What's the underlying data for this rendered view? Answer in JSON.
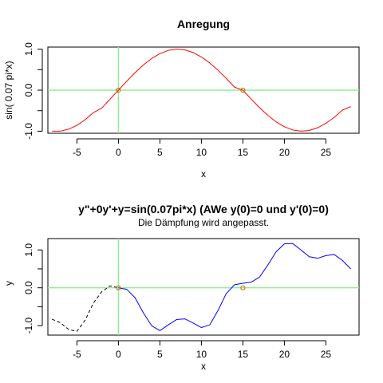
{
  "chart_data": [
    {
      "type": "line",
      "title": "Anregung",
      "subtitle": "",
      "xlabel": "x",
      "ylabel": "sin( 0.07 pi*x)",
      "xlim": [
        -8.5,
        29.0
      ],
      "ylim": [
        -1.05,
        1.05
      ],
      "x_ticks": [
        -5,
        0,
        5,
        10,
        15,
        20,
        25
      ],
      "y_ticks": [
        -1.0,
        0.0,
        1.0
      ],
      "y_tick_labels": [
        "-1.0",
        "0.0",
        "1.0"
      ],
      "grid": false,
      "reference_lines": {
        "vertical_x": 0,
        "horizontal_y": 0,
        "color": "#90ee90"
      },
      "markers": [
        {
          "x": 0,
          "y": 0
        },
        {
          "x": 15,
          "y": 0
        }
      ],
      "series": [
        {
          "color": "#ff0000",
          "x_range": [
            -8,
            28
          ],
          "x": [
            -8,
            -7,
            -6,
            -5,
            -4,
            -3,
            -2,
            -1,
            0,
            1,
            2,
            3,
            4,
            5,
            6,
            7,
            8,
            9,
            10,
            11,
            12,
            13,
            14,
            15,
            16,
            17,
            18,
            19,
            20,
            21,
            22,
            23,
            24,
            25,
            26,
            27,
            28
          ],
          "y": [
            -0.998,
            -1.0,
            -0.951,
            -0.857,
            -0.719,
            -0.545,
            -0.434,
            -0.218,
            0.0,
            0.218,
            0.426,
            0.613,
            0.771,
            0.891,
            0.969,
            1.0,
            0.982,
            0.917,
            0.809,
            0.663,
            0.485,
            0.287,
            0.073,
            0.0,
            -0.218,
            -0.426,
            -0.613,
            -0.771,
            -0.891,
            -0.969,
            -1.0,
            -0.982,
            -0.917,
            -0.809,
            -0.663,
            -0.485,
            -0.401
          ]
        }
      ]
    },
    {
      "type": "line",
      "title": "y\"+0y'+y=sin(0.07pi*x) (AWe y(0)=0 und y'(0)=0)",
      "subtitle": "Die Dämpfung wird angepasst.",
      "xlabel": "x",
      "ylabel": "y",
      "xlim": [
        -8.5,
        29.0
      ],
      "ylim": [
        -1.25,
        1.3
      ],
      "x_ticks": [
        -5,
        0,
        5,
        10,
        15,
        20,
        25
      ],
      "y_ticks": [
        -1.0,
        0.0,
        1.0
      ],
      "y_tick_labels": [
        "-1.0",
        "0.0",
        "1.0"
      ],
      "grid": false,
      "reference_lines": {
        "vertical_x": 0,
        "horizontal_y": 0,
        "color": "#90ee90"
      },
      "markers": [
        {
          "x": 0,
          "y": 0
        },
        {
          "x": 15,
          "y": 0
        }
      ],
      "series": [
        {
          "color": "#000000",
          "dash": "dashed",
          "x": [
            -8,
            -7,
            -6,
            -5,
            -4,
            -3,
            -2,
            -1,
            0
          ],
          "y": [
            -0.83,
            -0.92,
            -1.1,
            -1.15,
            -0.85,
            -0.4,
            -0.1,
            0.05,
            0.0
          ]
        },
        {
          "color": "#0000ff",
          "dash": "solid",
          "x": [
            0,
            1,
            2,
            3,
            4,
            5,
            6,
            7,
            8,
            9,
            10,
            11,
            12,
            13,
            14,
            15,
            16,
            17,
            18,
            19,
            20,
            21,
            22,
            23,
            24,
            25,
            26,
            27,
            28
          ],
          "y": [
            0.0,
            -0.04,
            -0.26,
            -0.66,
            -1.0,
            -1.13,
            -0.98,
            -0.84,
            -0.82,
            -0.93,
            -1.05,
            -0.98,
            -0.6,
            -0.15,
            0.08,
            0.12,
            0.15,
            0.28,
            0.6,
            0.95,
            1.16,
            1.17,
            1.0,
            0.82,
            0.78,
            0.85,
            0.88,
            0.72,
            0.5
          ]
        }
      ]
    }
  ]
}
